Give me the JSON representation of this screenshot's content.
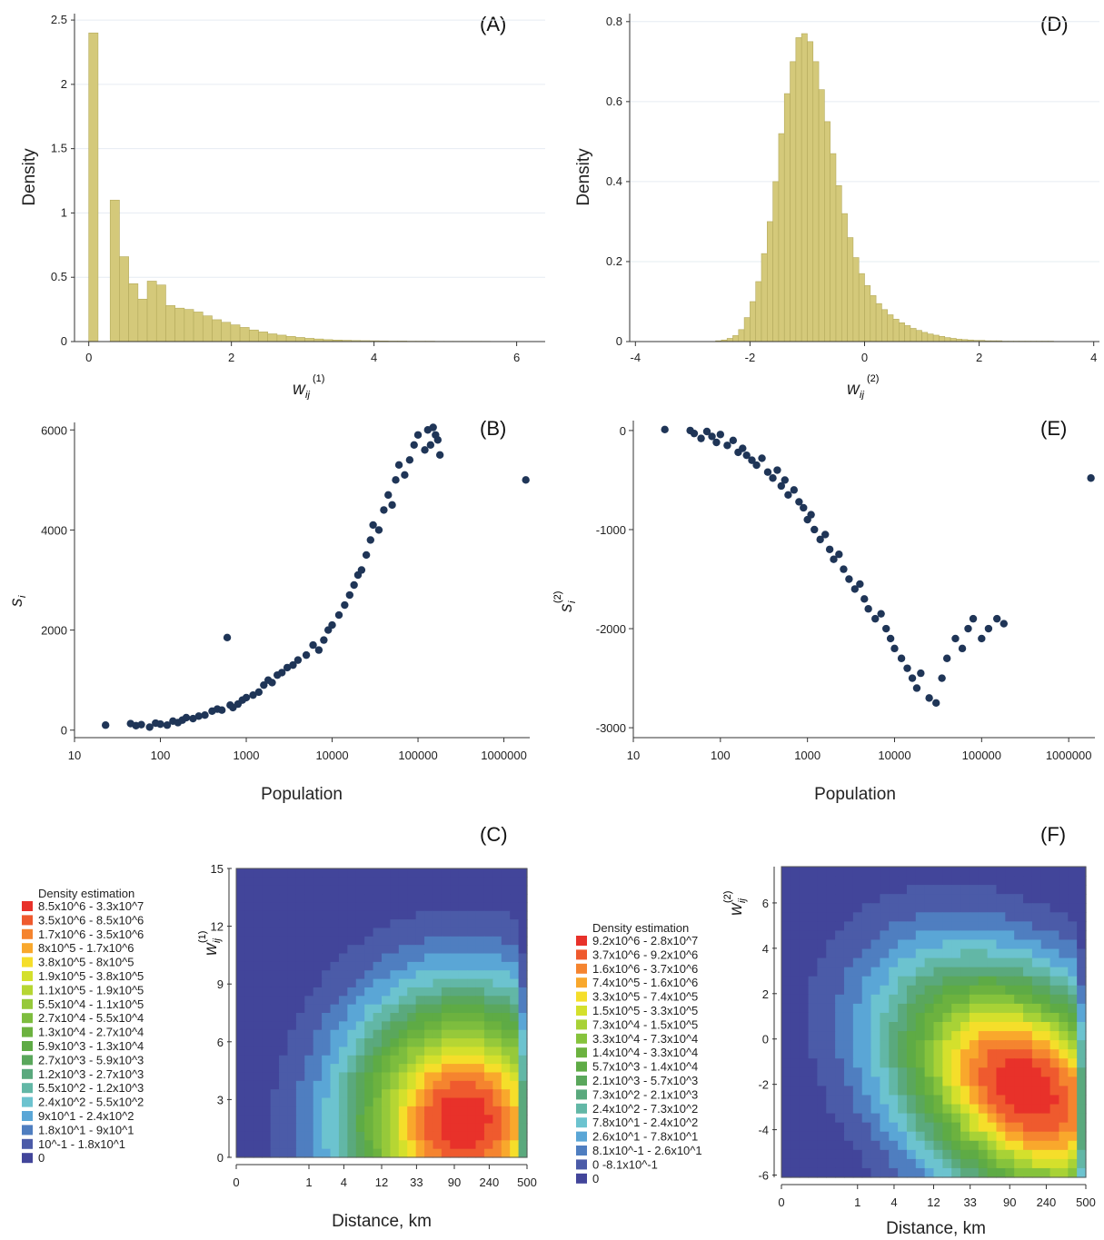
{
  "chart_data": [
    {
      "id": "A",
      "type": "bar",
      "panel_label": "(A)",
      "ylabel": "Density",
      "xlabel_main": "w",
      "xlabel_sub": "ij",
      "xlabel_sup": "(1)",
      "xlim": [
        -0.2,
        6.4
      ],
      "ylim": [
        0,
        2.55
      ],
      "xticks": [
        0,
        2,
        4,
        6
      ],
      "yticks": [
        0,
        0.5,
        1,
        1.5,
        2,
        2.5
      ],
      "bin_width": 0.13,
      "color": "#d4c97a",
      "bins_x": [
        0.0,
        0.3,
        0.43,
        0.56,
        0.69,
        0.82,
        0.95,
        1.08,
        1.21,
        1.34,
        1.47,
        1.6,
        1.73,
        1.86,
        1.99,
        2.12,
        2.25,
        2.38,
        2.51,
        2.64,
        2.77,
        2.9,
        3.03,
        3.16,
        3.29,
        3.42,
        3.55,
        3.68,
        3.81,
        3.94,
        4.07,
        4.2,
        4.33,
        4.46,
        4.59,
        4.72,
        4.85,
        4.98,
        5.11,
        5.24,
        5.37,
        5.5,
        5.63,
        5.76,
        5.89,
        6.02,
        6.15
      ],
      "values": [
        2.4,
        1.1,
        0.66,
        0.45,
        0.33,
        0.47,
        0.44,
        0.28,
        0.26,
        0.25,
        0.23,
        0.2,
        0.17,
        0.15,
        0.13,
        0.11,
        0.09,
        0.075,
        0.06,
        0.05,
        0.04,
        0.032,
        0.025,
        0.02,
        0.015,
        0.012,
        0.01,
        0.008,
        0.007,
        0.006,
        0.005,
        0.004,
        0.004,
        0.003,
        0.003,
        0.003,
        0.002,
        0.002,
        0.002,
        0.002,
        0.002,
        0.002,
        0.001,
        0.001,
        0.001,
        0.001,
        0.001
      ]
    },
    {
      "id": "D",
      "type": "bar",
      "panel_label": "(D)",
      "ylabel": "Density",
      "xlabel_main": "w",
      "xlabel_sub": "ij",
      "xlabel_sup": "(2)",
      "xlim": [
        -4.1,
        4.1
      ],
      "ylim": [
        0,
        0.82
      ],
      "xticks": [
        -4,
        -2,
        0,
        2,
        4
      ],
      "yticks": [
        0,
        0.2,
        0.4,
        0.6,
        0.8
      ],
      "bin_width": 0.1,
      "color": "#d4c97a",
      "bins_x": [
        -2.6,
        -2.5,
        -2.4,
        -2.3,
        -2.2,
        -2.1,
        -2.0,
        -1.9,
        -1.8,
        -1.7,
        -1.6,
        -1.5,
        -1.4,
        -1.3,
        -1.2,
        -1.1,
        -1.0,
        -0.9,
        -0.8,
        -0.7,
        -0.6,
        -0.5,
        -0.4,
        -0.3,
        -0.2,
        -0.1,
        0.0,
        0.1,
        0.2,
        0.3,
        0.4,
        0.5,
        0.6,
        0.7,
        0.8,
        0.9,
        1.0,
        1.1,
        1.2,
        1.3,
        1.4,
        1.5,
        1.6,
        1.7,
        1.8,
        1.9,
        2.0,
        2.1,
        2.2,
        2.3,
        2.4,
        2.5,
        2.6,
        2.7,
        2.8,
        2.9,
        3.0,
        3.1,
        3.2
      ],
      "values": [
        0.002,
        0.004,
        0.008,
        0.015,
        0.03,
        0.06,
        0.1,
        0.15,
        0.22,
        0.3,
        0.4,
        0.52,
        0.62,
        0.7,
        0.76,
        0.77,
        0.75,
        0.7,
        0.63,
        0.55,
        0.47,
        0.39,
        0.32,
        0.26,
        0.21,
        0.17,
        0.14,
        0.115,
        0.095,
        0.08,
        0.067,
        0.056,
        0.047,
        0.04,
        0.033,
        0.028,
        0.023,
        0.019,
        0.016,
        0.013,
        0.01,
        0.008,
        0.006,
        0.005,
        0.004,
        0.003,
        0.003,
        0.002,
        0.002,
        0.002,
        0.001,
        0.001,
        0.001,
        0.001,
        0.001,
        0.001,
        0.001,
        0.001,
        0.001
      ]
    },
    {
      "id": "B",
      "type": "scatter",
      "panel_label": "(B)",
      "xlabel": "Population",
      "ylabel_main": "s",
      "ylabel_sub": "i",
      "ylabel_sup": "(1)",
      "xscale": "log",
      "xlim": [
        10,
        2000000
      ],
      "ylim": [
        -150,
        6150
      ],
      "xticks": [
        10,
        100,
        1000,
        10000,
        100000,
        1000000
      ],
      "xtick_labels": [
        "10",
        "100",
        "1000",
        "10000",
        "100000",
        "1000000"
      ],
      "yticks": [
        0,
        2000,
        4000,
        6000
      ],
      "color": "#1f3557",
      "trend": "power",
      "trend_coef": 0.065,
      "trend_exp": 1.0,
      "noise": 0.28,
      "x": [
        23,
        45,
        52,
        60,
        75,
        88,
        100,
        120,
        140,
        160,
        180,
        200,
        240,
        280,
        330,
        400,
        460,
        520,
        600,
        650,
        700,
        800,
        900,
        1000,
        1200,
        1400,
        1600,
        1800,
        2000,
        2300,
        2600,
        3000,
        3500,
        4000,
        5000,
        6000,
        7000,
        8000,
        9000,
        10000,
        12000,
        14000,
        16000,
        18000,
        20000,
        22000,
        25000,
        28000,
        30000,
        35000,
        40000,
        45000,
        50000,
        55000,
        60000,
        70000,
        80000,
        90000,
        100000,
        120000,
        130000,
        140000,
        150000,
        160000,
        170000,
        180000,
        1800000
      ],
      "y": [
        100,
        130,
        90,
        110,
        60,
        140,
        120,
        100,
        180,
        150,
        200,
        250,
        230,
        280,
        300,
        380,
        420,
        400,
        1850,
        500,
        450,
        520,
        600,
        650,
        700,
        760,
        900,
        1000,
        950,
        1100,
        1150,
        1250,
        1300,
        1400,
        1500,
        1700,
        1600,
        1800,
        2000,
        2100,
        2300,
        2500,
        2700,
        2900,
        3100,
        3200,
        3500,
        3800,
        4100,
        4000,
        4400,
        4700,
        4500,
        5000,
        5300,
        5100,
        5400,
        5700,
        5900,
        5600,
        6000,
        5700,
        6050,
        5900,
        5800,
        5500,
        5000
      ]
    },
    {
      "id": "E",
      "type": "scatter",
      "panel_label": "(E)",
      "xlabel": "Population",
      "ylabel_main": "s",
      "ylabel_sub": "i",
      "ylabel_sup": "(2)",
      "xscale": "log",
      "xlim": [
        10,
        2000000
      ],
      "ylim": [
        -3100,
        100
      ],
      "xticks": [
        10,
        100,
        1000,
        10000,
        100000,
        1000000
      ],
      "xtick_labels": [
        "10",
        "100",
        "1000",
        "10000",
        "100000",
        "1000000"
      ],
      "yticks": [
        -3000,
        -2000,
        -1000,
        0
      ],
      "color": "#1f3557",
      "x": [
        23,
        45,
        50,
        60,
        70,
        80,
        90,
        100,
        120,
        140,
        160,
        180,
        200,
        230,
        260,
        300,
        350,
        400,
        450,
        500,
        550,
        600,
        700,
        800,
        900,
        1000,
        1100,
        1200,
        1400,
        1600,
        1800,
        2000,
        2300,
        2600,
        3000,
        3500,
        4000,
        4500,
        5000,
        6000,
        7000,
        8000,
        9000,
        10000,
        12000,
        14000,
        16000,
        18000,
        20000,
        25000,
        30000,
        35000,
        40000,
        50000,
        60000,
        70000,
        80000,
        100000,
        120000,
        150000,
        180000,
        1800000
      ],
      "y": [
        10,
        0,
        -30,
        -80,
        -10,
        -60,
        -120,
        -40,
        -150,
        -100,
        -220,
        -180,
        -250,
        -300,
        -350,
        -280,
        -420,
        -480,
        -400,
        -560,
        -500,
        -650,
        -600,
        -720,
        -780,
        -900,
        -850,
        -1000,
        -1100,
        -1050,
        -1200,
        -1300,
        -1250,
        -1400,
        -1500,
        -1600,
        -1550,
        -1700,
        -1800,
        -1900,
        -1850,
        -2000,
        -2100,
        -2200,
        -2300,
        -2400,
        -2500,
        -2600,
        -2450,
        -2700,
        -2750,
        -2500,
        -2300,
        -2100,
        -2200,
        -2000,
        -1900,
        -2100,
        -2000,
        -1900,
        -1950,
        -480
      ]
    },
    {
      "id": "C",
      "type": "heatmap",
      "panel_label": "(C)",
      "xlabel": "Distance, km",
      "ylabel_main": "w",
      "ylabel_sub": "ij",
      "ylabel_sup": "(1)",
      "xtick_labels": [
        "0",
        "1",
        "4",
        "12",
        "33",
        "90",
        "240",
        "500"
      ],
      "ylim": [
        0,
        15
      ],
      "yticks": [
        0,
        3,
        6,
        9,
        12,
        15
      ],
      "legend_title": "Density estimation",
      "legend": [
        {
          "label": "8.5x10^6 - 3.3x10^7",
          "color": "#e8312a"
        },
        {
          "label": "3.5x10^6 - 8.5x10^6",
          "color": "#ef5a2e"
        },
        {
          "label": "1.7x10^6 - 3.5x10^6",
          "color": "#f5842f"
        },
        {
          "label": "8x10^5    - 1.7x10^6",
          "color": "#f9a82c"
        },
        {
          "label": "3.8x10^5 - 8x10^5",
          "color": "#f5de2a"
        },
        {
          "label": "1.9x10^5 - 3.8x10^5",
          "color": "#d4e02c"
        },
        {
          "label": "1.1x10^5 - 1.9x10^5",
          "color": "#b6d633"
        },
        {
          "label": "5.5x10^4 - 1.1x10^5",
          "color": "#96c93a"
        },
        {
          "label": "2.7x10^4 - 5.5x10^4",
          "color": "#7dbd3e"
        },
        {
          "label": "1.3x10^4 - 2.7x10^4",
          "color": "#6cb23f"
        },
        {
          "label": "5.9x10^3 - 1.3x10^4",
          "color": "#5eab45"
        },
        {
          "label": "2.7x10^3 - 5.9x10^3",
          "color": "#5aa75c"
        },
        {
          "label": "1.2x10^3 - 2.7x10^3",
          "color": "#5aa97d"
        },
        {
          "label": "5.5x10^2 - 1.2x10^3",
          "color": "#62b7a6"
        },
        {
          "label": "2.4x10^2 - 5.5x10^2",
          "color": "#6cc3cf"
        },
        {
          "label": "9x10^1    - 2.4x10^2",
          "color": "#5aa6d6"
        },
        {
          "label": "1.8x10^1 - 9x10^1",
          "color": "#4f7ec0"
        },
        {
          "label": "10^-1      - 1.8x10^1",
          "color": "#4b5ba8"
        },
        {
          "label": "0",
          "color": "#42459a"
        }
      ],
      "peak": {
        "x": 0.78,
        "y": 1.8,
        "sx": 0.2,
        "sy": 3.4
      },
      "rows": 34,
      "cols": 34
    },
    {
      "id": "F",
      "type": "heatmap",
      "panel_label": "(F)",
      "xlabel": "Distance, km",
      "ylabel_main": "w",
      "ylabel_sub": "ij",
      "ylabel_sup": "(2)",
      "xtick_labels": [
        "0",
        "1",
        "4",
        "12",
        "33",
        "90",
        "240",
        "500"
      ],
      "ylim": [
        -6.1,
        7.6
      ],
      "yticks": [
        -6,
        -4,
        -2,
        0,
        2,
        4,
        6
      ],
      "legend_title": "Density estimation",
      "legend": [
        {
          "label": "9.2x10^6 - 2.8x10^7",
          "color": "#e8312a"
        },
        {
          "label": "3.7x10^6 - 9.2x10^6",
          "color": "#ef5a2e"
        },
        {
          "label": "1.6x10^6 - 3.7x10^6",
          "color": "#f5842f"
        },
        {
          "label": "7.4x10^5 - 1.6x10^6",
          "color": "#f9a82c"
        },
        {
          "label": "3.3x10^5 - 7.4x10^5",
          "color": "#f5de2a"
        },
        {
          "label": "1.5x10^5 - 3.3x10^5",
          "color": "#d4e02c"
        },
        {
          "label": "7.3x10^4 - 1.5x10^5",
          "color": "#a8d236"
        },
        {
          "label": "3.3x10^4 - 7.3x10^4",
          "color": "#86c33c"
        },
        {
          "label": "1.4x10^4 - 3.3x10^4",
          "color": "#6cb23f"
        },
        {
          "label": "5.7x10^3 - 1.4x10^4",
          "color": "#5eab45"
        },
        {
          "label": "2.1x10^3 - 5.7x10^3",
          "color": "#5aa75c"
        },
        {
          "label": "7.3x10^2 - 2.1x10^3",
          "color": "#5aa97d"
        },
        {
          "label": "2.4x10^2 - 7.3x10^2",
          "color": "#62b7a6"
        },
        {
          "label": "7.8x10^1 - 2.4x10^2",
          "color": "#6cc3cf"
        },
        {
          "label": "2.6x10^1 - 7.8x10^1",
          "color": "#5aa6d6"
        },
        {
          "label": "8.1x10^-1 - 2.6x10^1",
          "color": "#4f7ec0"
        },
        {
          "label": "0           -8.1x10^-1",
          "color": "#4b5ba8"
        },
        {
          "label": "0",
          "color": "#42459a"
        }
      ],
      "peak": {
        "x": 0.8,
        "y": -2.2,
        "sx": 0.22,
        "sy": 2.6
      },
      "rows": 34,
      "cols": 34
    }
  ]
}
